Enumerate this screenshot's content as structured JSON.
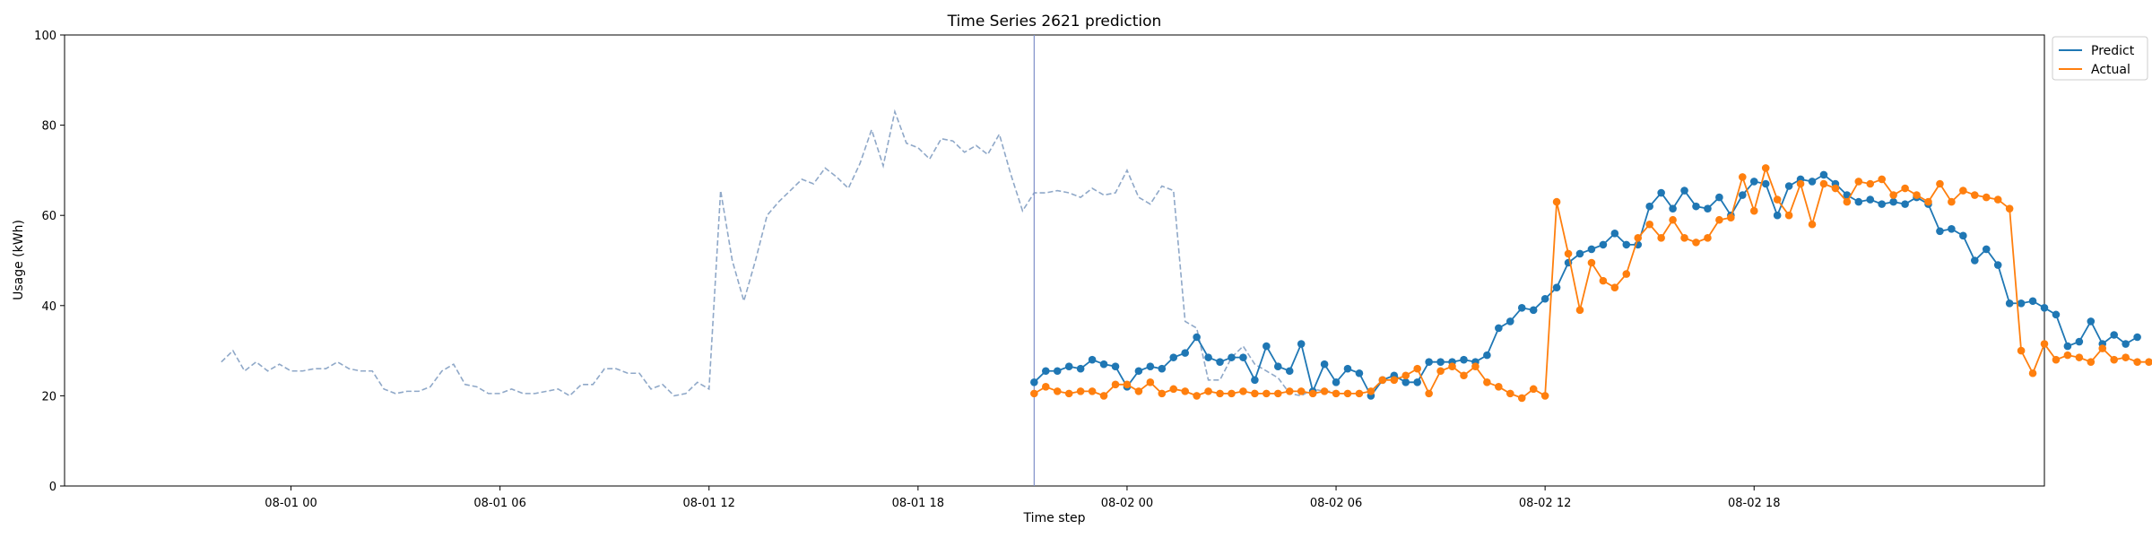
{
  "chart_data": {
    "type": "line",
    "title": "Time Series 2621 prediction",
    "xlabel": "Time step",
    "ylabel": "Usage (kWh)",
    "ylim": [
      0,
      100
    ],
    "xlim": [
      "2025-07-31 17:30",
      "2025-08-03 02:20"
    ],
    "yticks": [
      0,
      20,
      40,
      60,
      80,
      100
    ],
    "xticks": [
      {
        "t": "2025-08-01 00:00",
        "label": "08-01 00"
      },
      {
        "t": "2025-08-01 06:00",
        "label": "08-01 06"
      },
      {
        "t": "2025-08-01 12:00",
        "label": "08-01 12"
      },
      {
        "t": "2025-08-01 18:00",
        "label": "08-01 18"
      },
      {
        "t": "2025-08-02 00:00",
        "label": "08-02 00"
      },
      {
        "t": "2025-08-02 06:00",
        "label": "08-02 06"
      },
      {
        "t": "2025-08-02 12:00",
        "label": "08-02 12"
      },
      {
        "t": "2025-08-02 18:00",
        "label": "08-02 18"
      }
    ],
    "grid": false,
    "legend_position": "upper right, outside plot",
    "interval_minutes": 20,
    "forecast_start": "2025-08-01 21:20",
    "history": {
      "start": "2025-07-31 22:00",
      "color": "#8fa8c8",
      "values": [
        27.5,
        30,
        25.5,
        27.5,
        25.5,
        27,
        25.5,
        25.5,
        26,
        26,
        27.5,
        26,
        25.5,
        25.5,
        21.5,
        20.5,
        21,
        21,
        22,
        25.5,
        27,
        22.5,
        22,
        20.5,
        20.5,
        21.5,
        20.5,
        20.5,
        21,
        21.5,
        20,
        22.5,
        22.5,
        26,
        26,
        25,
        25,
        21.5,
        22.5,
        20,
        20.5,
        23,
        21.5,
        65.5,
        50,
        41,
        50,
        60,
        63,
        65.5,
        68,
        67,
        70.5,
        68.5,
        66,
        71.5,
        79,
        71,
        83,
        76,
        75,
        72.5,
        77,
        76.5,
        74,
        75.5,
        73.5,
        78,
        69,
        61,
        65,
        65,
        65.5,
        65,
        64,
        66,
        64.5,
        65,
        70,
        64,
        62.5,
        66.5,
        65.5,
        36.5,
        35,
        23.5,
        23.5,
        28.5,
        31,
        27,
        25.5,
        24,
        20.5,
        20,
        21.5,
        21,
        21
      ]
    },
    "series": [
      {
        "name": "Predict",
        "color": "#1f77b4",
        "start": "2025-08-01 21:20",
        "values": [
          23,
          25.5,
          25.5,
          26.5,
          26,
          28,
          27,
          26.5,
          22,
          25.5,
          26.5,
          26,
          28.5,
          29.5,
          33,
          28.5,
          27.5,
          28.5,
          28.5,
          23.5,
          31,
          26.5,
          25.5,
          31.5,
          21,
          27,
          23,
          26,
          25,
          20,
          23.5,
          24.5,
          23,
          23,
          27.5,
          27.5,
          27.5,
          28,
          27.5,
          29,
          35,
          36.5,
          39.5,
          39,
          41.5,
          44,
          49.5,
          51.5,
          52.5,
          53.5,
          56,
          53.5,
          53.5,
          62,
          65,
          61.5,
          65.5,
          62,
          61.5,
          64,
          60,
          64.5,
          67.5,
          67,
          60,
          66.5,
          68,
          67.5,
          69,
          67,
          64.5,
          63,
          63.5,
          62.5,
          63,
          62.5,
          64,
          62.5,
          56.5,
          57,
          55.5,
          50,
          52.5,
          49,
          40.5,
          40.5,
          41,
          39.5,
          38,
          31,
          32,
          36.5,
          31.5,
          33.5,
          31.5,
          33
        ]
      },
      {
        "name": "Actual",
        "color": "#ff7f0e",
        "start": "2025-08-01 21:20",
        "values": [
          20.5,
          22,
          21,
          20.5,
          21,
          21,
          20,
          22.5,
          22.5,
          21,
          23,
          20.5,
          21.5,
          21,
          20,
          21,
          20.5,
          20.5,
          21,
          20.5,
          20.5,
          20.5,
          21,
          21,
          20.5,
          21,
          20.5,
          20.5,
          20.5,
          21,
          23.5,
          23.5,
          24.5,
          26,
          20.5,
          25.5,
          26.5,
          24.5,
          26.5,
          23,
          22,
          20.5,
          19.5,
          21.5,
          20,
          63,
          51.5,
          39,
          49.5,
          45.5,
          44,
          47,
          55,
          58,
          55,
          59,
          55,
          54,
          55,
          59,
          59.5,
          68.5,
          61,
          70.5,
          63.5,
          60,
          67,
          58,
          67,
          66,
          63,
          67.5,
          67,
          68,
          64.5,
          66,
          64.5,
          63,
          67,
          63,
          65.5,
          64.5,
          64,
          63.5,
          61.5,
          30,
          25,
          31.5,
          28,
          29,
          28.5,
          27.5,
          30.5,
          28,
          28.5,
          27.5,
          27.5,
          27.5
        ]
      }
    ]
  }
}
